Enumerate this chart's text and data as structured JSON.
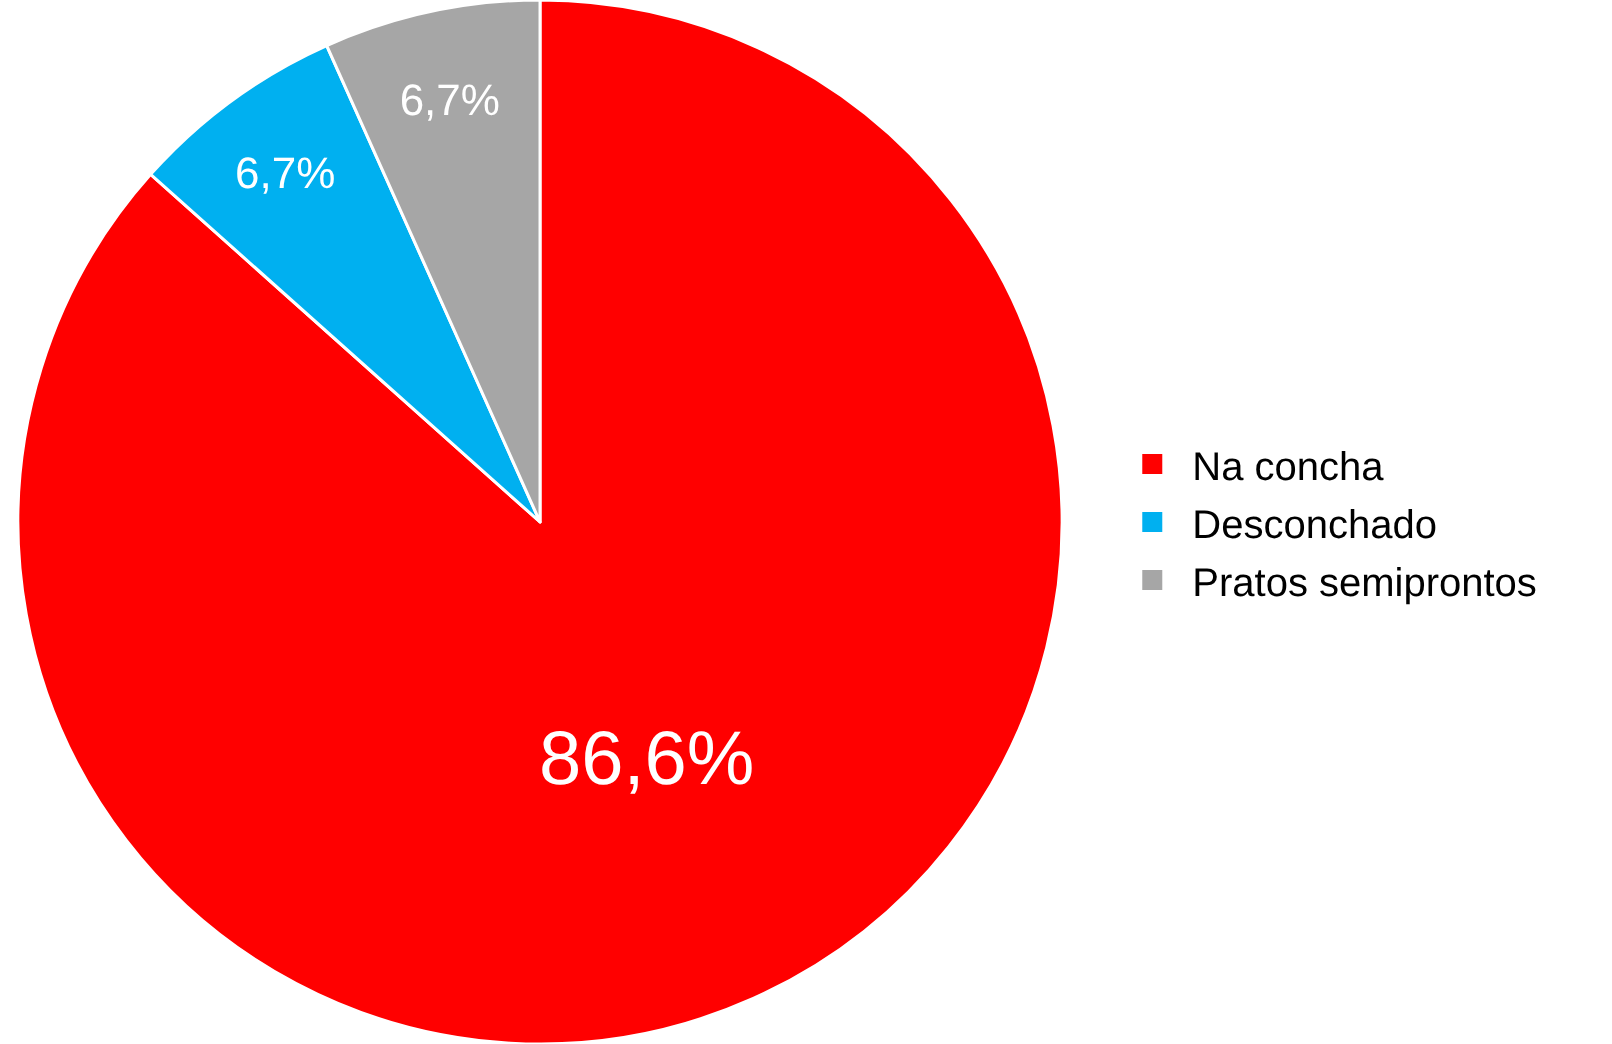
{
  "chart_data": {
    "type": "pie",
    "categories": [
      "Na concha",
      "Desconchado",
      "Pratos semiprontos"
    ],
    "values": [
      86.6,
      6.7,
      6.7
    ],
    "colors": [
      "#ff0000",
      "#00b0f0",
      "#a6a6a6"
    ],
    "value_labels": [
      "86,6%",
      "6,7%",
      "6,7%"
    ],
    "legend": "right"
  }
}
